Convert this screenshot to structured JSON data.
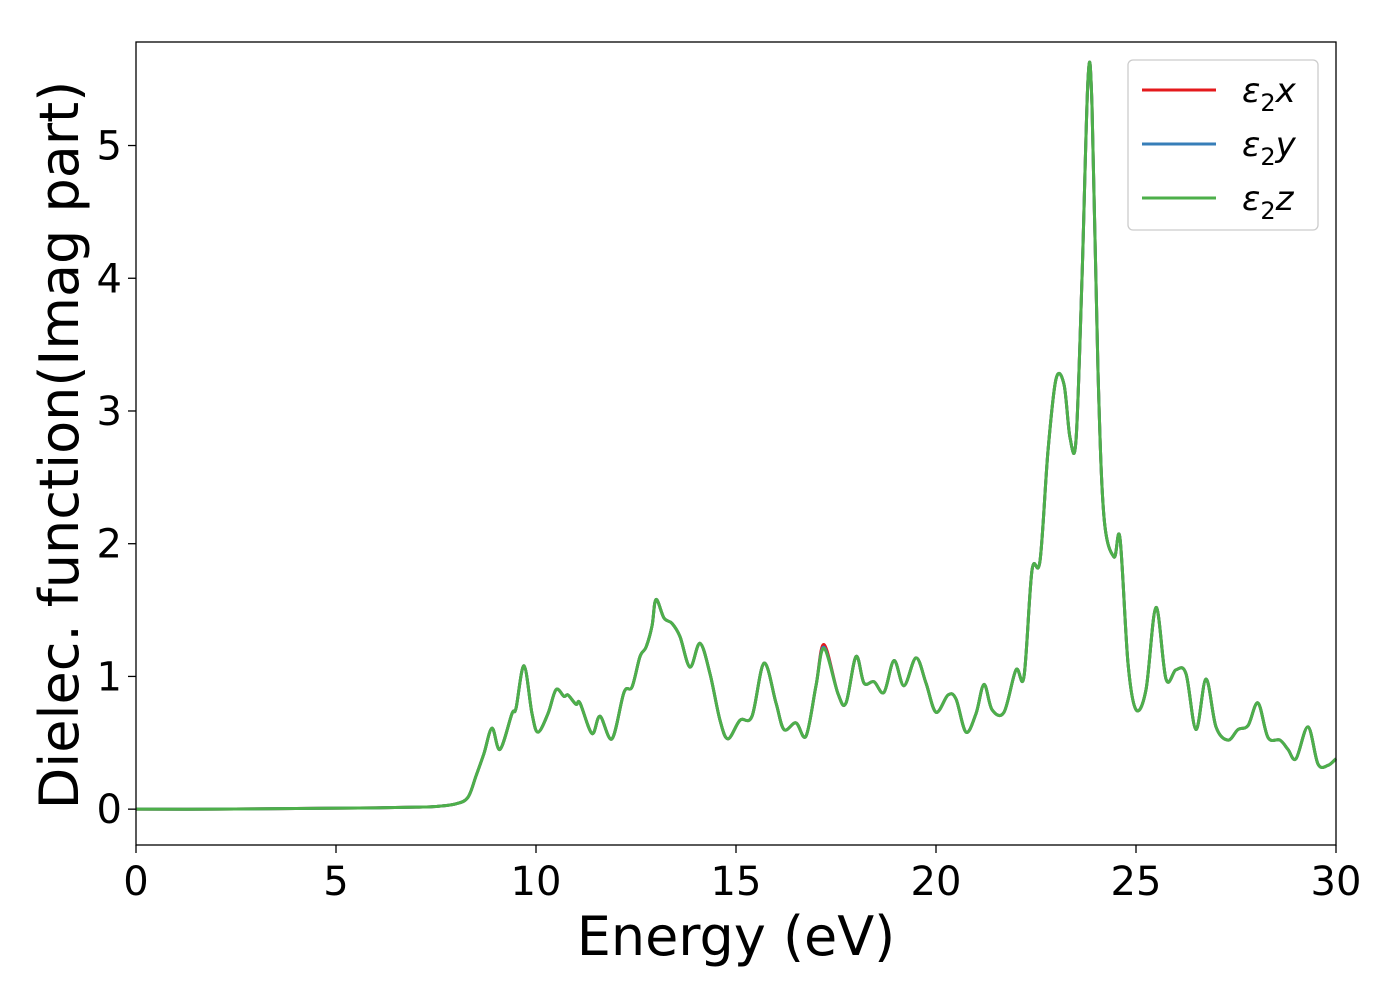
{
  "chart_data": {
    "type": "line",
    "title": "",
    "xlabel": "Energy (eV)",
    "ylabel": "Dielec. function(Imag part)",
    "xlim": [
      0,
      30
    ],
    "ylim": [
      -0.27,
      5.78
    ],
    "xticks": [
      0,
      5,
      10,
      15,
      20,
      25,
      30
    ],
    "xtick_labels": [
      "0",
      "5",
      "10",
      "15",
      "20",
      "25",
      "30"
    ],
    "yticks": [
      0,
      1,
      2,
      3,
      4,
      5
    ],
    "ytick_labels": [
      "0",
      "1",
      "2",
      "3",
      "4",
      "5"
    ],
    "grid": false,
    "legend_position": "top-right",
    "series": [
      {
        "name": "ε2x",
        "legend": {
          "symbol": "ε",
          "sub": "2",
          "axis": "x"
        },
        "color": "#e41a1c",
        "x": [
          0,
          2,
          4,
          6,
          7,
          7.5,
          8,
          8.3,
          8.5,
          8.7,
          8.9,
          9.1,
          9.4,
          9.5,
          9.7,
          9.9,
          10.05,
          10.3,
          10.5,
          10.7,
          10.8,
          11.0,
          11.1,
          11.4,
          11.6,
          11.9,
          12.2,
          12.4,
          12.6,
          12.75,
          12.9,
          13.0,
          13.2,
          13.4,
          13.6,
          13.85,
          14.1,
          14.35,
          14.6,
          14.8,
          15.1,
          15.4,
          15.7,
          16.0,
          16.2,
          16.5,
          16.75,
          17.0,
          17.2,
          17.55,
          17.75,
          18.0,
          18.2,
          18.45,
          18.7,
          18.95,
          19.2,
          19.5,
          19.75,
          20.0,
          20.3,
          20.5,
          20.75,
          21.0,
          21.2,
          21.4,
          21.7,
          22.0,
          22.2,
          22.4,
          22.6,
          22.8,
          23.0,
          23.2,
          23.35,
          23.5,
          23.65,
          23.8,
          23.9,
          24.05,
          24.2,
          24.45,
          24.6,
          24.8,
          25.0,
          25.25,
          25.5,
          25.75,
          26.0,
          26.25,
          26.5,
          26.75,
          27.0,
          27.3,
          27.55,
          27.8,
          28.05,
          28.3,
          28.6,
          28.8,
          29.0,
          29.3,
          29.55,
          29.8,
          30.0
        ],
        "y": [
          0.0,
          0.0,
          0.005,
          0.01,
          0.015,
          0.02,
          0.04,
          0.09,
          0.25,
          0.42,
          0.61,
          0.45,
          0.72,
          0.76,
          1.08,
          0.72,
          0.58,
          0.72,
          0.9,
          0.85,
          0.86,
          0.79,
          0.8,
          0.57,
          0.7,
          0.53,
          0.88,
          0.92,
          1.15,
          1.22,
          1.38,
          1.58,
          1.44,
          1.4,
          1.3,
          1.07,
          1.25,
          1.02,
          0.67,
          0.53,
          0.67,
          0.7,
          1.1,
          0.8,
          0.6,
          0.65,
          0.55,
          0.93,
          1.24,
          0.87,
          0.8,
          1.15,
          0.95,
          0.96,
          0.88,
          1.12,
          0.93,
          1.14,
          0.95,
          0.73,
          0.86,
          0.83,
          0.58,
          0.72,
          0.94,
          0.75,
          0.73,
          1.05,
          1.0,
          1.8,
          1.87,
          2.7,
          3.24,
          3.2,
          2.8,
          2.78,
          4.0,
          5.5,
          5.3,
          3.3,
          2.2,
          1.9,
          2.04,
          1.1,
          0.75,
          0.9,
          1.52,
          0.98,
          1.05,
          1.02,
          0.6,
          0.98,
          0.62,
          0.52,
          0.6,
          0.63,
          0.8,
          0.54,
          0.52,
          0.45,
          0.38,
          0.62,
          0.34,
          0.33,
          0.38
        ]
      },
      {
        "name": "ε2y",
        "legend": {
          "symbol": "ε",
          "sub": "2",
          "axis": "y"
        },
        "color": "#377eb8",
        "x": [
          0,
          2,
          4,
          6,
          7,
          7.5,
          8,
          8.3,
          8.5,
          8.7,
          8.9,
          9.1,
          9.4,
          9.5,
          9.7,
          9.9,
          10.05,
          10.3,
          10.5,
          10.7,
          10.8,
          11.0,
          11.1,
          11.4,
          11.6,
          11.9,
          12.2,
          12.4,
          12.6,
          12.75,
          12.9,
          13.0,
          13.2,
          13.4,
          13.6,
          13.85,
          14.1,
          14.35,
          14.6,
          14.8,
          15.1,
          15.4,
          15.7,
          16.0,
          16.2,
          16.5,
          16.75,
          17.0,
          17.2,
          17.55,
          17.75,
          18.0,
          18.2,
          18.45,
          18.7,
          18.95,
          19.2,
          19.5,
          19.75,
          20.0,
          20.3,
          20.5,
          20.75,
          21.0,
          21.2,
          21.4,
          21.7,
          22.0,
          22.2,
          22.4,
          22.6,
          22.8,
          23.0,
          23.2,
          23.35,
          23.5,
          23.65,
          23.8,
          23.9,
          24.05,
          24.2,
          24.45,
          24.6,
          24.8,
          25.0,
          25.25,
          25.5,
          25.75,
          26.0,
          26.25,
          26.5,
          26.75,
          27.0,
          27.3,
          27.55,
          27.8,
          28.05,
          28.3,
          28.6,
          28.8,
          29.0,
          29.3,
          29.55,
          29.8,
          30.0
        ],
        "y": [
          0.0,
          0.0,
          0.005,
          0.01,
          0.015,
          0.02,
          0.04,
          0.09,
          0.25,
          0.42,
          0.61,
          0.45,
          0.72,
          0.76,
          1.08,
          0.72,
          0.58,
          0.72,
          0.9,
          0.85,
          0.86,
          0.79,
          0.8,
          0.57,
          0.7,
          0.53,
          0.88,
          0.92,
          1.15,
          1.22,
          1.38,
          1.58,
          1.44,
          1.4,
          1.3,
          1.07,
          1.25,
          1.02,
          0.67,
          0.53,
          0.67,
          0.7,
          1.1,
          0.8,
          0.6,
          0.65,
          0.55,
          0.93,
          1.22,
          0.87,
          0.8,
          1.15,
          0.95,
          0.96,
          0.88,
          1.12,
          0.93,
          1.14,
          0.95,
          0.73,
          0.86,
          0.83,
          0.58,
          0.72,
          0.94,
          0.75,
          0.73,
          1.05,
          1.0,
          1.8,
          1.87,
          2.7,
          3.24,
          3.2,
          2.8,
          2.78,
          4.0,
          5.5,
          5.3,
          3.3,
          2.2,
          1.9,
          2.04,
          1.1,
          0.75,
          0.9,
          1.52,
          0.98,
          1.05,
          1.02,
          0.6,
          0.98,
          0.62,
          0.52,
          0.6,
          0.63,
          0.8,
          0.54,
          0.52,
          0.45,
          0.38,
          0.62,
          0.34,
          0.33,
          0.38
        ]
      },
      {
        "name": "ε2z",
        "legend": {
          "symbol": "ε",
          "sub": "2",
          "axis": "z"
        },
        "color": "#4daf4a",
        "x": [
          0,
          2,
          4,
          6,
          7,
          7.5,
          8,
          8.3,
          8.5,
          8.7,
          8.9,
          9.1,
          9.4,
          9.5,
          9.7,
          9.9,
          10.05,
          10.3,
          10.5,
          10.7,
          10.8,
          11.0,
          11.1,
          11.4,
          11.6,
          11.9,
          12.2,
          12.4,
          12.6,
          12.75,
          12.9,
          13.0,
          13.2,
          13.4,
          13.6,
          13.85,
          14.1,
          14.35,
          14.6,
          14.8,
          15.1,
          15.4,
          15.7,
          16.0,
          16.2,
          16.5,
          16.75,
          17.0,
          17.2,
          17.55,
          17.75,
          18.0,
          18.2,
          18.45,
          18.7,
          18.95,
          19.2,
          19.5,
          19.75,
          20.0,
          20.3,
          20.5,
          20.75,
          21.0,
          21.2,
          21.4,
          21.7,
          22.0,
          22.2,
          22.4,
          22.6,
          22.8,
          23.0,
          23.2,
          23.35,
          23.5,
          23.65,
          23.8,
          23.9,
          24.05,
          24.2,
          24.45,
          24.6,
          24.8,
          25.0,
          25.25,
          25.5,
          25.75,
          26.0,
          26.25,
          26.5,
          26.75,
          27.0,
          27.3,
          27.55,
          27.8,
          28.05,
          28.3,
          28.6,
          28.8,
          29.0,
          29.3,
          29.55,
          29.8,
          30.0
        ],
        "y": [
          0.0,
          0.0,
          0.005,
          0.01,
          0.015,
          0.02,
          0.04,
          0.09,
          0.25,
          0.42,
          0.61,
          0.45,
          0.72,
          0.76,
          1.08,
          0.72,
          0.58,
          0.72,
          0.9,
          0.85,
          0.86,
          0.79,
          0.8,
          0.57,
          0.7,
          0.53,
          0.88,
          0.92,
          1.15,
          1.22,
          1.38,
          1.58,
          1.44,
          1.4,
          1.3,
          1.07,
          1.25,
          1.02,
          0.67,
          0.53,
          0.67,
          0.7,
          1.1,
          0.8,
          0.6,
          0.65,
          0.55,
          0.93,
          1.21,
          0.87,
          0.8,
          1.15,
          0.95,
          0.96,
          0.88,
          1.12,
          0.93,
          1.14,
          0.95,
          0.73,
          0.86,
          0.83,
          0.58,
          0.72,
          0.94,
          0.75,
          0.73,
          1.05,
          1.0,
          1.8,
          1.87,
          2.7,
          3.24,
          3.2,
          2.8,
          2.78,
          4.0,
          5.5,
          5.3,
          3.3,
          2.2,
          1.9,
          2.04,
          1.1,
          0.75,
          0.9,
          1.52,
          0.98,
          1.05,
          1.02,
          0.6,
          0.98,
          0.62,
          0.52,
          0.6,
          0.63,
          0.8,
          0.54,
          0.52,
          0.45,
          0.38,
          0.62,
          0.34,
          0.33,
          0.38
        ]
      }
    ]
  }
}
